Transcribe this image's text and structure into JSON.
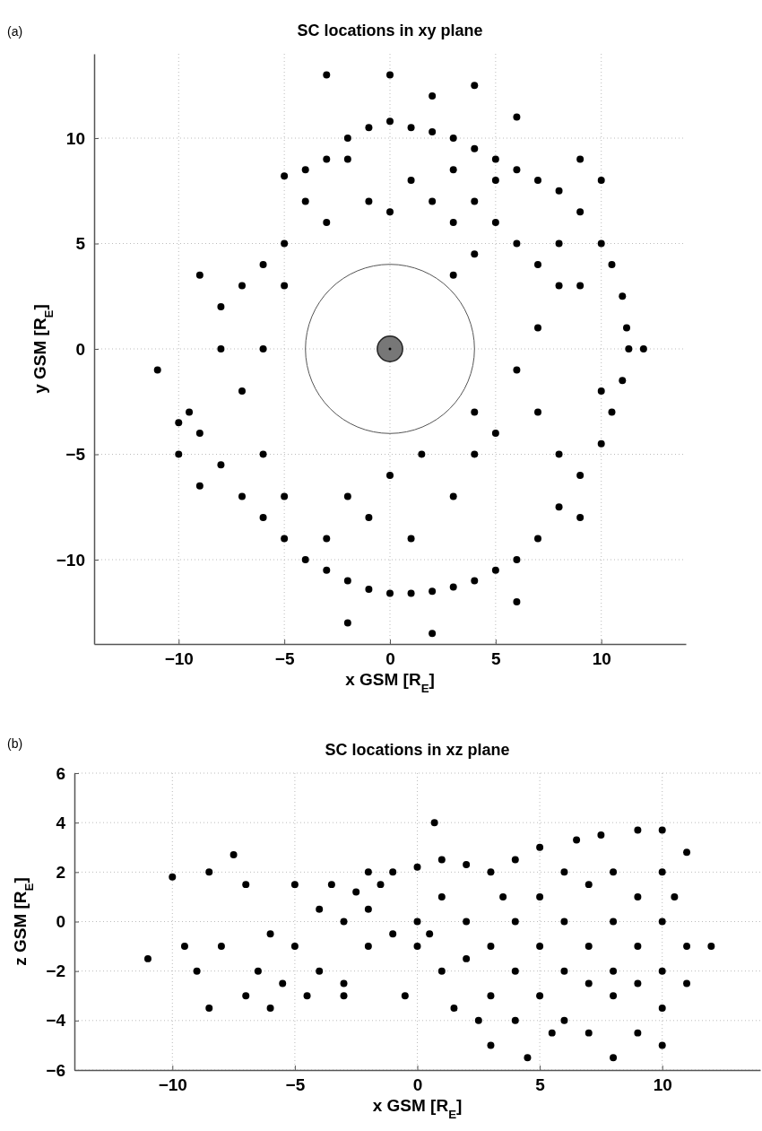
{
  "chart_data": [
    {
      "type": "scatter",
      "title": "SC locations in xy plane",
      "xlabel": "x GSM [R$_{E}$]",
      "ylabel": "y GSM [R$_{E}$]",
      "annotations": [
        "(a)"
      ],
      "xlim": [
        -14,
        14
      ],
      "ylim": [
        -14,
        14
      ],
      "xticks": [
        -10,
        -5,
        0,
        5,
        10
      ],
      "yticks": [
        -10,
        -5,
        0,
        5,
        10
      ],
      "grid": true,
      "marker": "circle",
      "series": [
        {
          "color": "#000000",
          "x": [
            -5,
            -4,
            -3,
            -2,
            -1,
            0,
            1,
            2,
            3,
            4,
            5,
            6,
            7,
            8,
            9,
            10,
            10.5,
            11,
            11.2,
            11.3,
            11,
            10.5,
            10,
            9,
            8,
            7,
            6,
            5,
            4,
            3,
            2,
            1,
            0,
            -1,
            -2,
            -3,
            -4,
            -5,
            -6,
            -7,
            -8,
            -9,
            -9.5,
            -11,
            -9,
            1,
            2,
            3,
            4,
            5,
            6,
            7,
            8,
            7,
            6,
            7,
            8,
            5,
            4,
            3,
            1,
            -1,
            -2,
            -3,
            -5,
            -6,
            -7,
            -8,
            -8,
            -7,
            -6,
            -5,
            -3,
            -1,
            0,
            2,
            0,
            4,
            -3,
            6,
            12,
            9,
            10,
            9,
            10,
            9,
            6,
            2,
            -2,
            -5,
            -6,
            -9,
            -10,
            4,
            3,
            8,
            5,
            3,
            -2,
            -4,
            0,
            1.5,
            4,
            -10
          ],
          "values": [
            8.2,
            8.5,
            9,
            10,
            10.5,
            10.8,
            10.5,
            10.3,
            10,
            9.5,
            9,
            8.5,
            8,
            7.5,
            6.5,
            5,
            4,
            2.5,
            1,
            0,
            -1.5,
            -3,
            -4.5,
            -6,
            -7.5,
            -9,
            -10,
            -10.5,
            -11,
            -11.3,
            -11.5,
            -11.6,
            -11.6,
            -11.4,
            -11,
            -10.5,
            -10,
            -9,
            -8,
            -7,
            -5.5,
            -4,
            -3,
            -1,
            -6.5,
            8,
            7,
            6,
            7,
            6,
            5,
            4,
            3,
            1,
            -1,
            -3,
            -5,
            -4,
            -3,
            -7,
            -9,
            -8,
            -7,
            -9,
            -7,
            -5,
            -2,
            0,
            2,
            3,
            4,
            5,
            6,
            7,
            6.5,
            12,
            13,
            12.5,
            13,
            11,
            0,
            9,
            8,
            3,
            -2,
            -8,
            -12,
            -13.5,
            -13,
            3,
            0,
            3.5,
            -5,
            -5,
            3.5,
            5,
            8,
            8.5,
            9,
            7,
            -6,
            -5,
            4.5,
            -3.5
          ]
        }
      ]
    },
    {
      "type": "scatter",
      "title": "SC locations in xz plane",
      "xlabel": "x GSM [R$_{E}$]",
      "ylabel": "z GSM [R$_{E}$]",
      "annotations": [
        "(b)"
      ],
      "xlim": [
        -14,
        14
      ],
      "ylim": [
        -6,
        6
      ],
      "xticks": [
        -10,
        -5,
        0,
        5,
        10
      ],
      "yticks": [
        -6,
        -4,
        -2,
        0,
        2,
        4,
        6
      ],
      "grid": true,
      "marker": "circle",
      "series": [
        {
          "color": "#000000",
          "x": [
            -11,
            -10,
            -9.5,
            -9,
            -8.5,
            -8.5,
            -8,
            -7.5,
            -7,
            -7,
            -6.5,
            -6,
            -5.5,
            -5,
            -5,
            -4.5,
            -4,
            -4,
            -3.5,
            -3,
            -3,
            -2.5,
            -2,
            -2,
            -1.5,
            -1,
            -1,
            -0.5,
            0,
            0,
            0,
            0.7,
            1,
            1,
            1,
            1.5,
            2,
            2,
            2,
            2.5,
            3,
            3,
            3,
            3,
            3.5,
            4,
            4,
            4,
            4,
            4.5,
            5,
            5,
            5,
            5,
            5.5,
            6,
            6,
            6,
            6,
            6.5,
            7,
            7,
            7,
            7,
            7.5,
            8,
            8,
            8,
            8,
            8,
            9,
            9,
            9,
            9,
            9,
            10,
            10,
            10,
            10,
            10,
            10,
            10.5,
            11,
            11,
            11,
            12,
            -3,
            -6,
            -2,
            0.5
          ],
          "values": [
            -1.5,
            1.8,
            -1,
            -2,
            -3.5,
            2,
            -1,
            2.7,
            1.5,
            -3,
            -2,
            -0.5,
            -2.5,
            1.5,
            -1,
            -3,
            0.5,
            -2,
            1.5,
            0,
            -2.5,
            1.2,
            -1,
            2,
            1.5,
            2,
            -0.5,
            -3,
            2.2,
            0,
            -1,
            4,
            2.5,
            1,
            -2,
            -3.5,
            2.3,
            0,
            -1.5,
            -4,
            2,
            -1,
            -3,
            -5,
            1,
            2.5,
            0,
            -2,
            -4,
            -5.5,
            3,
            1,
            -1,
            -3,
            -4.5,
            2,
            0,
            -2,
            -4,
            3.3,
            1.5,
            -1,
            -2.5,
            -4.5,
            3.5,
            2,
            0,
            -2,
            -3,
            -5.5,
            3.7,
            1,
            -1,
            -2.5,
            -4.5,
            3.7,
            2,
            0,
            -2,
            -3.5,
            -5,
            1,
            2.8,
            -1,
            -2.5,
            -1,
            -3,
            -3.5,
            0.5,
            -0.5
          ]
        }
      ]
    }
  ]
}
